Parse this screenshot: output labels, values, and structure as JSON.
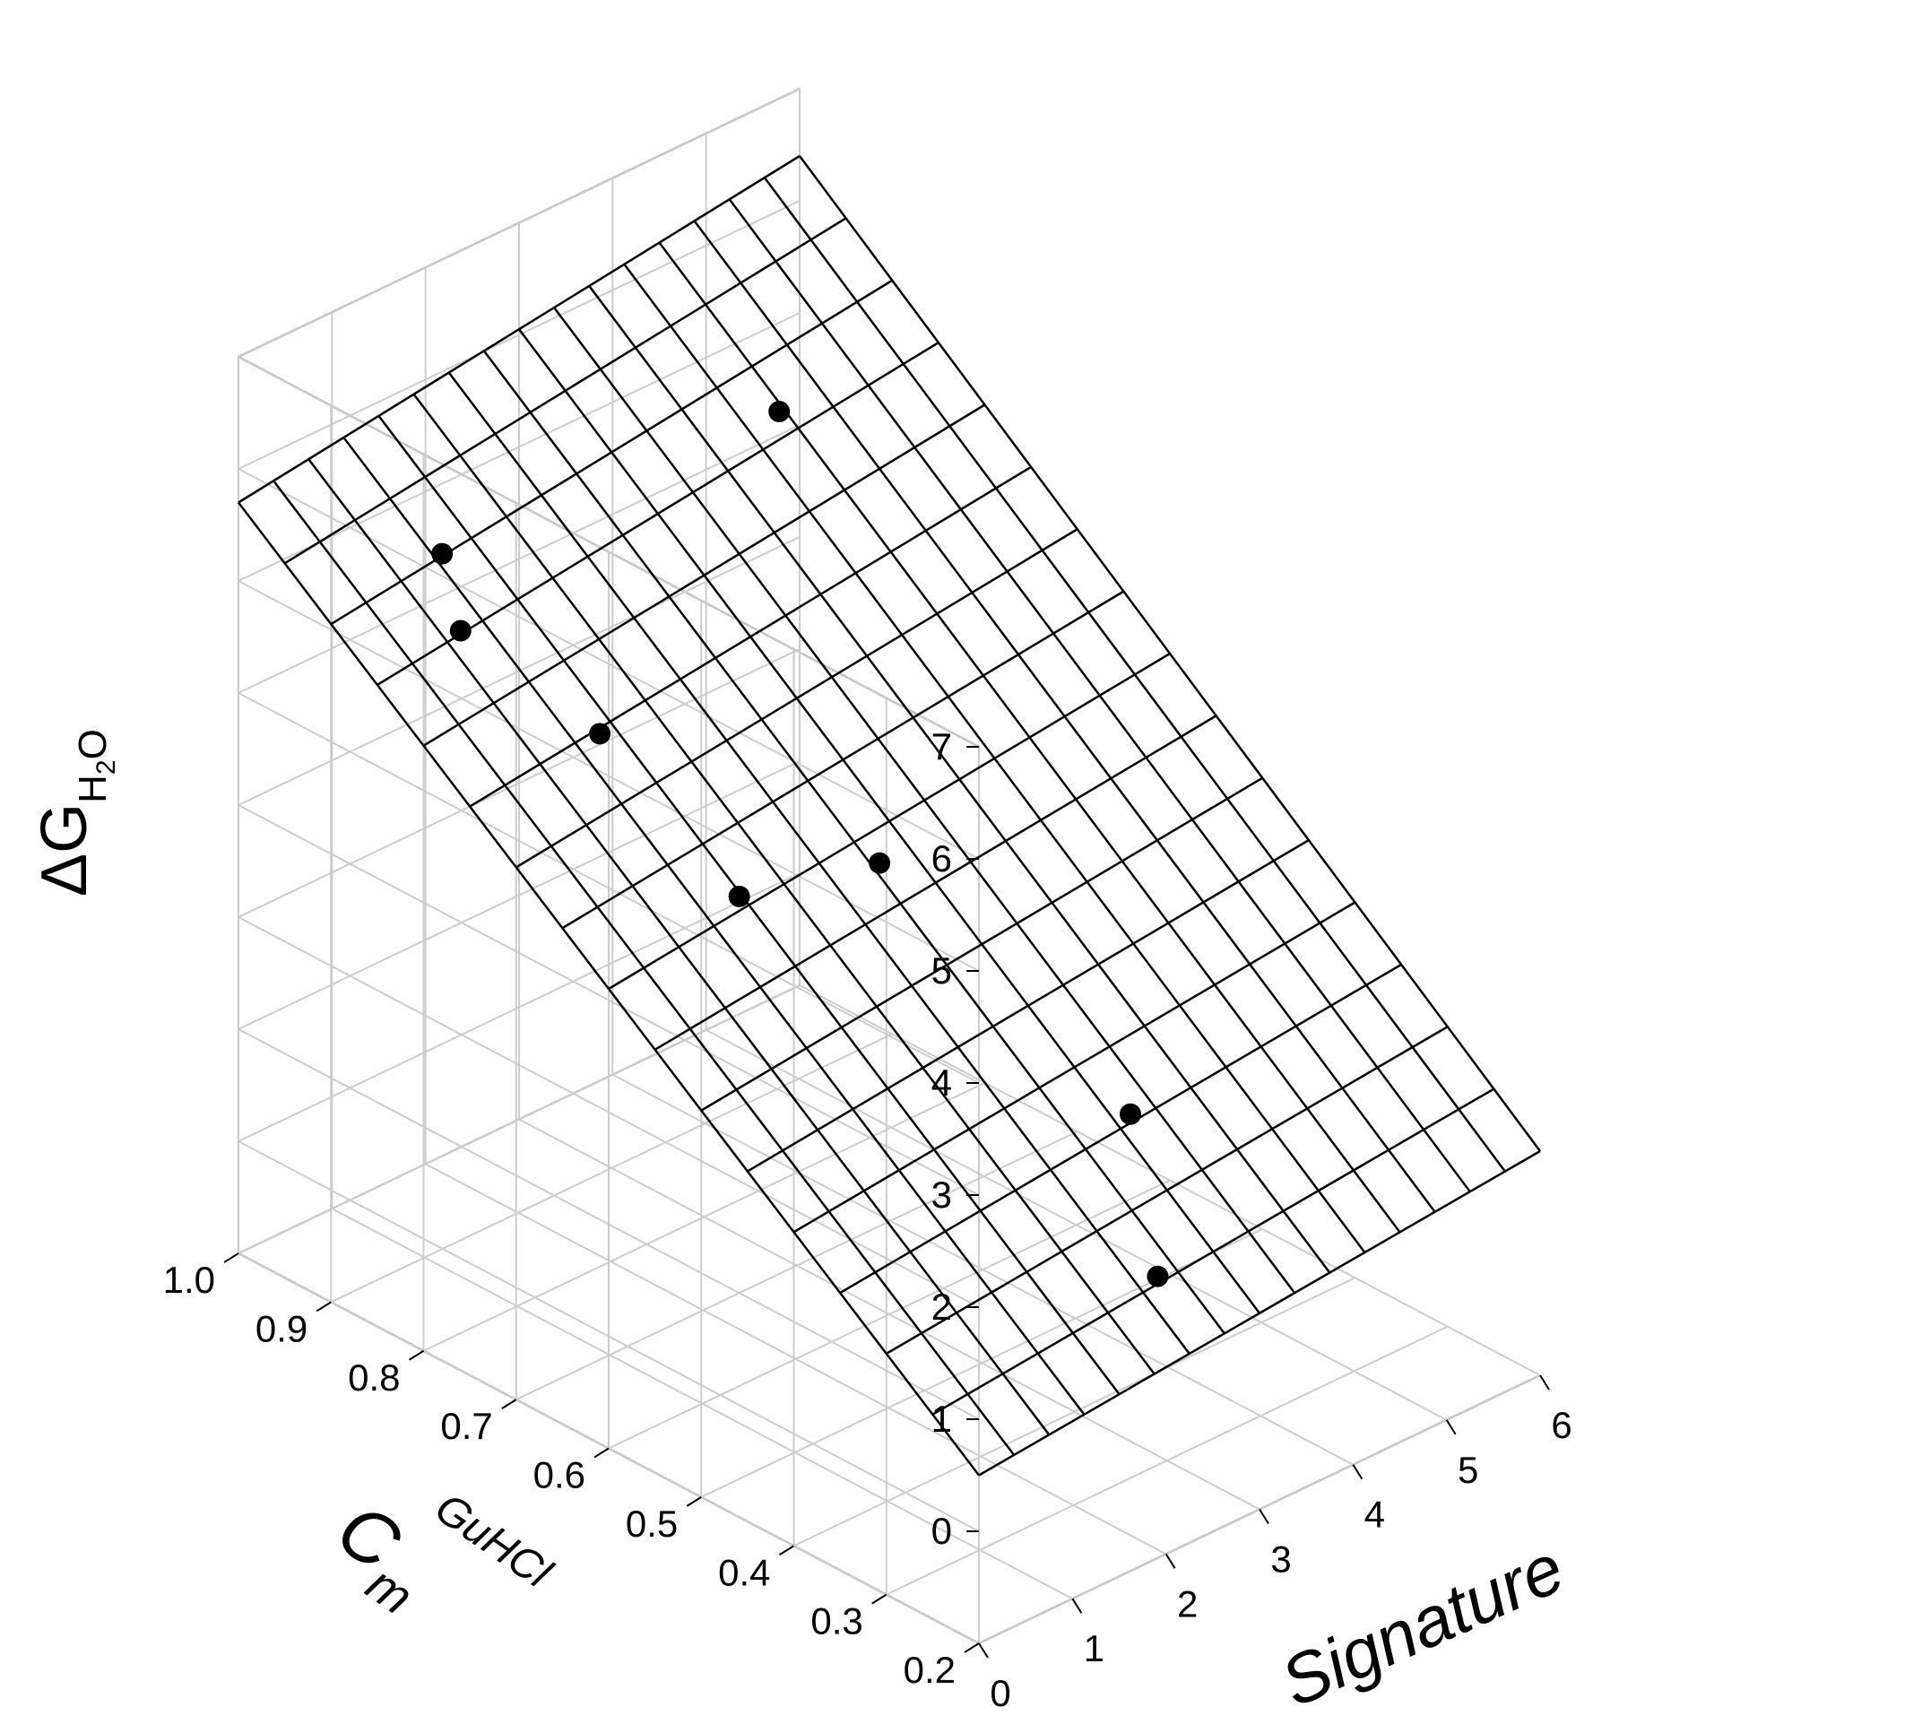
{
  "chart_data": {
    "type": "scatter",
    "subtype": "3d-scatter-with-fitted-plane",
    "title": "",
    "axes": {
      "x": {
        "label": "Signature",
        "range": [
          0,
          6
        ],
        "ticks": [
          "0",
          "1",
          "2",
          "3",
          "4",
          "5",
          "6"
        ]
      },
      "y": {
        "label_main": "C",
        "label_sub": "m",
        "label_suffix": "GuHCl",
        "range": [
          0.2,
          1.0
        ],
        "ticks": [
          "0.2",
          "0.3",
          "0.4",
          "0.5",
          "0.6",
          "0.7",
          "0.8",
          "0.9",
          "1.0"
        ]
      },
      "z": {
        "label_main": "ΔG",
        "label_sub_h": "H",
        "label_sub_2": "2",
        "label_sub_o": "O",
        "range": [
          -1,
          7
        ],
        "ticks": [
          "0",
          "1",
          "2",
          "3",
          "4",
          "5",
          "6",
          "7"
        ]
      }
    },
    "grid": true,
    "points": [
      {
        "x": 0.0,
        "y": 0.78,
        "z": 6.2
      },
      {
        "x": 0.0,
        "y": 0.76,
        "z": 5.6
      },
      {
        "x": 0.4,
        "y": 0.65,
        "z": 5.0
      },
      {
        "x": 1.0,
        "y": 0.56,
        "z": 3.7
      },
      {
        "x": 4.0,
        "y": 0.82,
        "z": 5.7
      },
      {
        "x": 2.5,
        "y": 0.56,
        "z": 3.4
      },
      {
        "x": 3.5,
        "y": 0.39,
        "z": 1.5
      },
      {
        "x": 3.0,
        "y": 0.31,
        "z": 0.6
      }
    ],
    "fitted_plane": {
      "x_range": [
        0,
        6
      ],
      "y_range": [
        0.2,
        1.0
      ],
      "z_corners": {
        "x0_y1": 5.7,
        "x6_y1": 6.4,
        "x0_y02": 0.5,
        "x6_y02": 1.0
      },
      "x_divisions": 16,
      "y_divisions": 16
    }
  }
}
